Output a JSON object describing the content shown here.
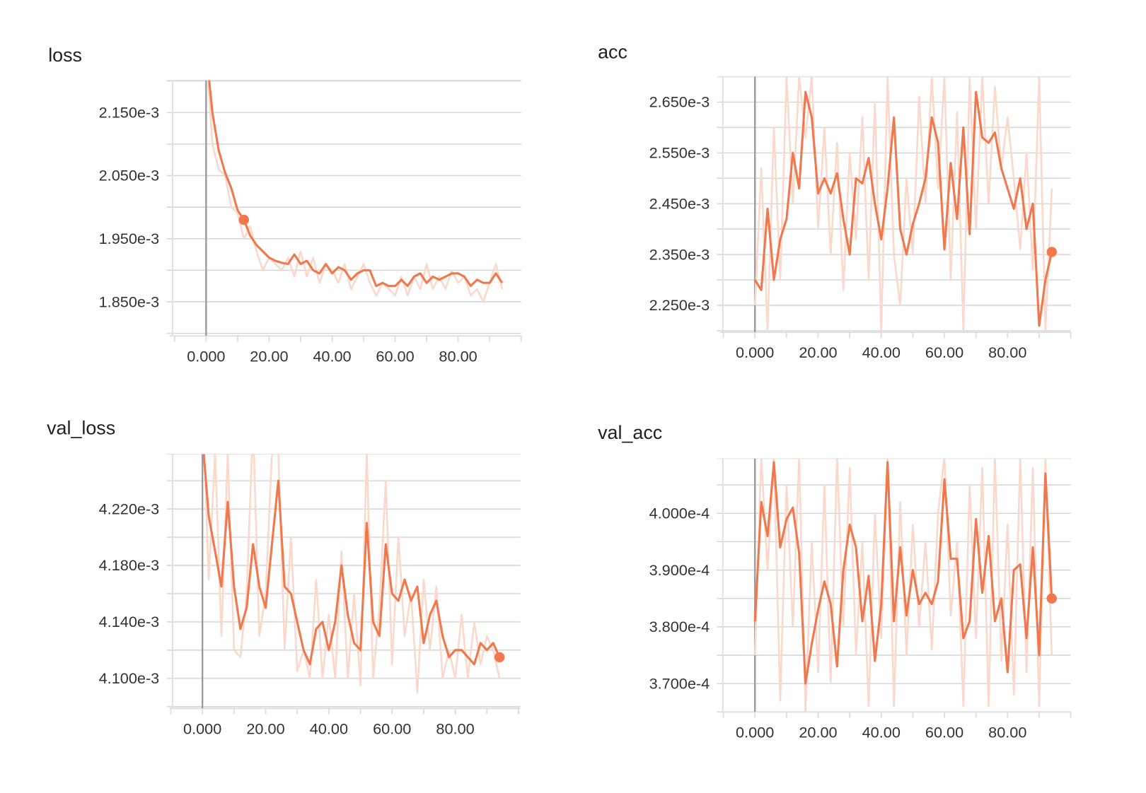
{
  "colors": {
    "smoothed": "#f0784c",
    "raw": "#fbd8cc",
    "grid": "#d4d4d4",
    "zero_line": "#9e9e9e"
  },
  "chart_data": [
    {
      "type": "line",
      "title": "loss",
      "xlim": [
        -11.6,
        100
      ],
      "ylim": [
        0.001796,
        0.002201
      ],
      "grid": true,
      "x_ticks": [
        {
          "value": 0,
          "label": "0.000"
        },
        {
          "value": 20,
          "label": "20.00"
        },
        {
          "value": 40,
          "label": "40.00"
        },
        {
          "value": 60,
          "label": "60.00"
        },
        {
          "value": 80,
          "label": "80.00"
        }
      ],
      "y_ticks": [
        {
          "value": 0.00215,
          "label": "2.150e-3"
        },
        {
          "value": 0.00205,
          "label": "2.050e-3"
        },
        {
          "value": 0.00195,
          "label": "1.950e-3"
        },
        {
          "value": 0.00185,
          "label": "1.850e-3"
        }
      ],
      "x": [
        0,
        2,
        4,
        6,
        8,
        10,
        12,
        14,
        16,
        18,
        20,
        22,
        24,
        26,
        28,
        30,
        32,
        34,
        36,
        38,
        40,
        42,
        44,
        46,
        48,
        50,
        52,
        54,
        56,
        58,
        60,
        62,
        64,
        66,
        68,
        70,
        72,
        74,
        76,
        78,
        80,
        82,
        84,
        86,
        88,
        90,
        92,
        94
      ],
      "series": [
        {
          "values": [
            0.00225,
            0.0021,
            0.00206,
            0.00205,
            0.002,
            0.00199,
            0.00195,
            0.00197,
            0.00193,
            0.0019,
            0.00192,
            0.00191,
            0.0019,
            0.00192,
            0.00189,
            0.00193,
            0.00189,
            0.00192,
            0.00188,
            0.00191,
            0.0019,
            0.00188,
            0.00191,
            0.00187,
            0.00189,
            0.00191,
            0.00188,
            0.00186,
            0.00188,
            0.00187,
            0.00186,
            0.00189,
            0.00186,
            0.00189,
            0.00187,
            0.00191,
            0.00187,
            0.00189,
            0.00187,
            0.0019,
            0.00188,
            0.00189,
            0.00186,
            0.00187,
            0.00185,
            0.00188,
            0.00191,
            0.00187
          ]
        },
        {
          "values": [
            0.00225,
            0.00215,
            0.00209,
            0.002055,
            0.00203,
            0.001995,
            0.00198,
            0.001955,
            0.00194,
            0.00193,
            0.00192,
            0.001915,
            0.001912,
            0.00191,
            0.001925,
            0.00191,
            0.001915,
            0.0019,
            0.001895,
            0.00191,
            0.001895,
            0.001905,
            0.0019,
            0.001885,
            0.001895,
            0.0019,
            0.0019,
            0.001875,
            0.00188,
            0.001875,
            0.001875,
            0.001885,
            0.001875,
            0.00189,
            0.001895,
            0.00188,
            0.00189,
            0.001885,
            0.00189,
            0.001895,
            0.001895,
            0.00189,
            0.001875,
            0.001885,
            0.00188,
            0.00188,
            0.001895,
            0.00188
          ]
        }
      ],
      "highlight_point": {
        "x": 12,
        "y": 0.00198
      }
    },
    {
      "type": "line",
      "title": "acc",
      "xlim": [
        -11.1,
        100
      ],
      "ylim": [
        0.002197,
        0.0027
      ],
      "grid": true,
      "x_ticks": [
        {
          "value": 0,
          "label": "0.000"
        },
        {
          "value": 20,
          "label": "20.00"
        },
        {
          "value": 40,
          "label": "40.00"
        },
        {
          "value": 60,
          "label": "60.00"
        },
        {
          "value": 80,
          "label": "80.00"
        }
      ],
      "y_ticks": [
        {
          "value": 0.00265,
          "label": "2.650e-3"
        },
        {
          "value": 0.00255,
          "label": "2.550e-3"
        },
        {
          "value": 0.00245,
          "label": "2.450e-3"
        },
        {
          "value": 0.00235,
          "label": "2.350e-3"
        },
        {
          "value": 0.00225,
          "label": "2.250e-3"
        }
      ],
      "x": [
        0,
        2,
        4,
        6,
        8,
        10,
        12,
        14,
        16,
        18,
        20,
        22,
        24,
        26,
        28,
        30,
        32,
        34,
        36,
        38,
        40,
        42,
        44,
        46,
        48,
        50,
        52,
        54,
        56,
        58,
        60,
        62,
        64,
        66,
        68,
        70,
        72,
        74,
        76,
        78,
        80,
        82,
        84,
        86,
        88,
        90,
        92,
        94
      ],
      "series": [
        {
          "values": [
            0.00225,
            0.00252,
            0.0022,
            0.0026,
            0.0023,
            0.0027,
            0.00245,
            0.0027,
            0.00258,
            0.0027,
            0.0024,
            0.0026,
            0.00235,
            0.00257,
            0.00228,
            0.00255,
            0.00238,
            0.00262,
            0.0023,
            0.00265,
            0.0022,
            0.0027,
            0.00235,
            0.00225,
            0.0025,
            0.00235,
            0.00266,
            0.00245,
            0.0027,
            0.00248,
            0.0027,
            0.0023,
            0.00263,
            0.0022,
            0.0027,
            0.0024,
            0.0027,
            0.00245,
            0.00268,
            0.00252,
            0.00262,
            0.0025,
            0.00236,
            0.00255,
            0.00232,
            0.0027,
            0.0022,
            0.00248
          ]
        },
        {
          "values": [
            0.0023,
            0.00228,
            0.00244,
            0.0023,
            0.00238,
            0.00242,
            0.00255,
            0.00248,
            0.00267,
            0.00262,
            0.00247,
            0.0025,
            0.00247,
            0.00251,
            0.00242,
            0.00235,
            0.0025,
            0.00249,
            0.00254,
            0.00245,
            0.00238,
            0.00248,
            0.00262,
            0.0024,
            0.00235,
            0.00241,
            0.00245,
            0.0025,
            0.00262,
            0.00257,
            0.00236,
            0.00253,
            0.00242,
            0.0026,
            0.00239,
            0.00267,
            0.00258,
            0.00257,
            0.00259,
            0.00252,
            0.00248,
            0.00244,
            0.0025,
            0.0024,
            0.00245,
            0.00221,
            0.0023,
            0.002355
          ]
        }
      ],
      "highlight_point": {
        "x": 94,
        "y": 0.002355
      }
    },
    {
      "type": "line",
      "title": "val_loss",
      "xlim": [
        -10.4,
        100.6
      ],
      "ylim": [
        0.0040788,
        0.0042588
      ],
      "grid": true,
      "x_ticks": [
        {
          "value": 0,
          "label": "0.000"
        },
        {
          "value": 20,
          "label": "20.00"
        },
        {
          "value": 40,
          "label": "40.00"
        },
        {
          "value": 60,
          "label": "60.00"
        },
        {
          "value": 80,
          "label": "80.00"
        }
      ],
      "y_ticks": [
        {
          "value": 0.00422,
          "label": "4.220e-3"
        },
        {
          "value": 0.00418,
          "label": "4.180e-3"
        },
        {
          "value": 0.00414,
          "label": "4.140e-3"
        },
        {
          "value": 0.0041,
          "label": "4.100e-3"
        }
      ],
      "x": [
        0,
        2,
        4,
        6,
        8,
        10,
        12,
        14,
        16,
        18,
        20,
        22,
        24,
        26,
        28,
        30,
        32,
        34,
        36,
        38,
        40,
        42,
        44,
        46,
        48,
        50,
        52,
        54,
        56,
        58,
        60,
        62,
        64,
        66,
        68,
        70,
        72,
        74,
        76,
        78,
        80,
        82,
        84,
        86,
        88,
        90,
        92,
        94
      ],
      "series": [
        {
          "values": [
            0.0043,
            0.00417,
            0.00426,
            0.00413,
            0.00426,
            0.00412,
            0.004115,
            0.00416,
            0.00428,
            0.00413,
            0.00416,
            0.00426,
            0.00426,
            0.00412,
            0.0042,
            0.004105,
            0.00412,
            0.0041,
            0.00417,
            0.0041,
            0.004145,
            0.0041,
            0.00419,
            0.0041,
            0.00416,
            0.004095,
            0.00426,
            0.0041,
            0.00415,
            0.00424,
            0.00411,
            0.0042,
            0.00413,
            0.00416,
            0.00409,
            0.00417,
            0.00412,
            0.004165,
            0.0041,
            0.00412,
            0.0041,
            0.004145,
            0.0041,
            0.00414,
            0.00411,
            0.00413,
            0.00412,
            0.0041
          ]
        },
        {
          "values": [
            0.00427,
            0.004215,
            0.00419,
            0.004165,
            0.004225,
            0.004165,
            0.004135,
            0.00415,
            0.004195,
            0.004165,
            0.00415,
            0.004195,
            0.00424,
            0.004165,
            0.00416,
            0.00414,
            0.00412,
            0.00411,
            0.004135,
            0.00414,
            0.00412,
            0.00414,
            0.00418,
            0.004145,
            0.004125,
            0.00412,
            0.00421,
            0.00414,
            0.00413,
            0.004195,
            0.00416,
            0.004155,
            0.00417,
            0.004155,
            0.004165,
            0.004125,
            0.004145,
            0.004155,
            0.00413,
            0.004115,
            0.00412,
            0.00412,
            0.004115,
            0.00411,
            0.004125,
            0.00412,
            0.004125,
            0.004115
          ]
        }
      ],
      "highlight_point": {
        "x": 94,
        "y": 0.004115
      }
    },
    {
      "type": "line",
      "title": "val_acc",
      "xlim": [
        -11.1,
        100
      ],
      "ylim": [
        0.000365,
        0.00040965
      ],
      "grid": true,
      "x_ticks": [
        {
          "value": 0,
          "label": "0.000"
        },
        {
          "value": 20,
          "label": "20.00"
        },
        {
          "value": 40,
          "label": "40.00"
        },
        {
          "value": 60,
          "label": "60.00"
        },
        {
          "value": 80,
          "label": "80.00"
        }
      ],
      "y_ticks": [
        {
          "value": 0.0004,
          "label": "4.000e-4"
        },
        {
          "value": 0.00039,
          "label": "3.900e-4"
        },
        {
          "value": 0.00038,
          "label": "3.800e-4"
        },
        {
          "value": 0.00037,
          "label": "3.700e-4"
        }
      ],
      "x": [
        0,
        2,
        4,
        6,
        8,
        10,
        12,
        14,
        16,
        18,
        20,
        22,
        24,
        26,
        28,
        30,
        32,
        34,
        36,
        38,
        40,
        42,
        44,
        46,
        48,
        50,
        52,
        54,
        56,
        58,
        60,
        62,
        64,
        66,
        68,
        70,
        72,
        74,
        76,
        78,
        80,
        82,
        84,
        86,
        88,
        90,
        92,
        94
      ],
      "series": [
        {
          "values": [
            0.000375,
            0.00041,
            0.00039,
            0.00041,
            0.000367,
            0.000405,
            0.00038,
            0.00041,
            0.000365,
            0.000395,
            0.000372,
            0.000405,
            0.00037,
            0.00041,
            0.00038,
            0.000408,
            0.000375,
            0.000395,
            0.000366,
            0.0004,
            0.000378,
            0.00041,
            0.000366,
            0.000402,
            0.000375,
            0.000398,
            0.00038,
            0.000395,
            0.000376,
            0.0004,
            0.00041,
            0.000382,
            0.000395,
            0.000366,
            0.000405,
            0.000378,
            0.000408,
            0.000366,
            0.00041,
            0.000374,
            0.000398,
            0.000368,
            0.00041,
            0.000372,
            0.000408,
            0.000366,
            0.00041,
            0.000375
          ]
        },
        {
          "values": [
            0.000381,
            0.000402,
            0.000396,
            0.000409,
            0.000394,
            0.000399,
            0.000401,
            0.000393,
            0.00037,
            0.000377,
            0.000383,
            0.000388,
            0.000384,
            0.000373,
            0.00039,
            0.000398,
            0.000394,
            0.000381,
            0.000389,
            0.000374,
            0.000384,
            0.000409,
            0.000381,
            0.000394,
            0.000382,
            0.00039,
            0.000384,
            0.000386,
            0.000384,
            0.000388,
            0.000406,
            0.000392,
            0.000392,
            0.000378,
            0.000381,
            0.000399,
            0.000386,
            0.000396,
            0.000381,
            0.000385,
            0.000372,
            0.00039,
            0.000391,
            0.000378,
            0.000394,
            0.000375,
            0.000407,
            0.000385
          ]
        }
      ],
      "highlight_point": {
        "x": 94,
        "y": 0.000385
      }
    }
  ]
}
